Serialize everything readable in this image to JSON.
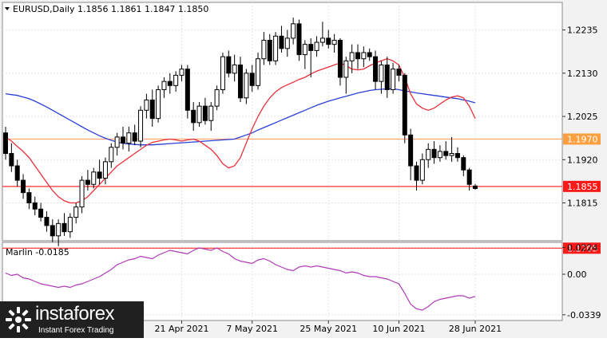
{
  "header": {
    "symbol_line": "EURUSD,Daily  1.1856 1.1861 1.1847 1.1850"
  },
  "indicator": {
    "label": "Marlin -0.0185"
  },
  "watermark": {
    "brand": "instaforex",
    "tagline": "Instant Forex Trading"
  },
  "colors": {
    "ma_fast": "#e8303a",
    "ma_slow": "#2b3fd6",
    "osc": "#b03ab8",
    "level_line": "#ff3030",
    "resistance_line": "#ffa070",
    "price_tag_red": "#ff1a1a",
    "price_tag_orange": "#ffa040"
  },
  "chart_data": [
    {
      "type": "candlestick",
      "title": "EURUSD,Daily  1.1856 1.1861 1.1847 1.1850",
      "ylim": [
        1.1725,
        1.23
      ],
      "y_ticks": [
        "1.2235",
        "1.2130",
        "1.2025",
        "1.1920",
        "1.1815"
      ],
      "x_ticks": [
        "21 Apr 2021",
        "7 May 2021",
        "25 May 2021",
        "10 Jun 2021",
        "28 Jun 2021"
      ],
      "x_tick_positions": [
        30,
        42,
        55,
        67,
        80
      ],
      "candles": [
        [
          1.1985,
          1.2,
          1.192,
          1.1935
        ],
        [
          1.1935,
          1.196,
          1.189,
          1.1905
        ],
        [
          1.1905,
          1.192,
          1.1855,
          1.187
        ],
        [
          1.187,
          1.1885,
          1.1825,
          1.184
        ],
        [
          1.184,
          1.185,
          1.18,
          1.1815
        ],
        [
          1.1815,
          1.183,
          1.1785,
          1.18
        ],
        [
          1.18,
          1.1815,
          1.177,
          1.178
        ],
        [
          1.178,
          1.1795,
          1.1745,
          1.176
        ],
        [
          1.176,
          1.1775,
          1.172,
          1.1735
        ],
        [
          1.1735,
          1.1775,
          1.171,
          1.1765
        ],
        [
          1.1765,
          1.179,
          1.1735,
          1.1745
        ],
        [
          1.1745,
          1.179,
          1.173,
          1.178
        ],
        [
          1.178,
          1.1815,
          1.1765,
          1.1805
        ],
        [
          1.1805,
          1.188,
          1.179,
          1.187
        ],
        [
          1.187,
          1.1895,
          1.1845,
          1.186
        ],
        [
          1.186,
          1.19,
          1.185,
          1.189
        ],
        [
          1.189,
          1.192,
          1.186,
          1.1875
        ],
        [
          1.1875,
          1.1925,
          1.186,
          1.1915
        ],
        [
          1.1915,
          1.196,
          1.19,
          1.195
        ],
        [
          1.195,
          1.1985,
          1.193,
          1.1975
        ],
        [
          1.1975,
          1.2,
          1.1945,
          1.196
        ],
        [
          1.196,
          1.2,
          1.194,
          1.1985
        ],
        [
          1.1985,
          1.2005,
          1.1955,
          1.1965
        ],
        [
          1.1965,
          1.205,
          1.195,
          1.204
        ],
        [
          1.204,
          1.208,
          1.202,
          1.2065
        ],
        [
          1.2065,
          1.209,
          1.2,
          1.202
        ],
        [
          1.202,
          1.21,
          1.201,
          1.209
        ],
        [
          1.209,
          1.212,
          1.207,
          1.211
        ],
        [
          1.211,
          1.213,
          1.208,
          1.21
        ],
        [
          1.21,
          1.2135,
          1.2085,
          1.2125
        ],
        [
          1.2125,
          1.215,
          1.211,
          1.214
        ],
        [
          1.214,
          1.215,
          1.202,
          1.204
        ],
        [
          1.204,
          1.206,
          1.199,
          1.201
        ],
        [
          1.201,
          1.206,
          1.2,
          1.205
        ],
        [
          1.205,
          1.207,
          1.2005,
          1.2015
        ],
        [
          1.2015,
          1.206,
          1.199,
          1.205
        ],
        [
          1.205,
          1.21,
          1.204,
          1.209
        ],
        [
          1.209,
          1.218,
          1.208,
          1.217
        ],
        [
          1.217,
          1.2185,
          1.212,
          1.213
        ],
        [
          1.213,
          1.2175,
          1.211,
          1.215
        ],
        [
          1.215,
          1.217,
          1.206,
          1.207
        ],
        [
          1.207,
          1.214,
          1.2055,
          1.213
        ],
        [
          1.213,
          1.215,
          1.2085,
          1.21
        ],
        [
          1.21,
          1.218,
          1.209,
          1.2165
        ],
        [
          1.2165,
          1.223,
          1.215,
          1.221
        ],
        [
          1.221,
          1.2225,
          1.215,
          1.216
        ],
        [
          1.216,
          1.223,
          1.215,
          1.222
        ],
        [
          1.222,
          1.2245,
          1.218,
          1.219
        ],
        [
          1.219,
          1.2235,
          1.217,
          1.2215
        ],
        [
          1.2215,
          1.2265,
          1.22,
          1.225
        ],
        [
          1.225,
          1.226,
          1.216,
          1.2175
        ],
        [
          1.2175,
          1.221,
          1.214,
          1.22
        ],
        [
          1.22,
          1.2215,
          1.212,
          1.2185
        ],
        [
          1.2185,
          1.222,
          1.217,
          1.2205
        ],
        [
          1.2205,
          1.2255,
          1.2195,
          1.2215
        ],
        [
          1.2215,
          1.2235,
          1.219,
          1.22
        ],
        [
          1.22,
          1.2225,
          1.218,
          1.221
        ],
        [
          1.221,
          1.2215,
          1.21,
          1.212
        ],
        [
          1.212,
          1.217,
          1.208,
          1.216
        ],
        [
          1.216,
          1.22,
          1.213,
          1.218
        ],
        [
          1.218,
          1.22,
          1.214,
          1.2165
        ],
        [
          1.2165,
          1.2195,
          1.2145,
          1.218
        ],
        [
          1.218,
          1.219,
          1.216,
          1.217
        ],
        [
          1.217,
          1.2185,
          1.209,
          1.211
        ],
        [
          1.211,
          1.216,
          1.208,
          1.215
        ],
        [
          1.215,
          1.217,
          1.207,
          1.209
        ],
        [
          1.209,
          1.2155,
          1.208,
          1.214
        ],
        [
          1.214,
          1.215,
          1.211,
          1.2125
        ],
        [
          1.2125,
          1.213,
          1.196,
          1.198
        ],
        [
          1.198,
          1.1995,
          1.187,
          1.1905
        ],
        [
          1.1905,
          1.1915,
          1.1845,
          1.187
        ],
        [
          1.187,
          1.1935,
          1.186,
          1.192
        ],
        [
          1.192,
          1.196,
          1.19,
          1.1945
        ],
        [
          1.1945,
          1.1965,
          1.191,
          1.1925
        ],
        [
          1.1925,
          1.1955,
          1.1915,
          1.194
        ],
        [
          1.194,
          1.1965,
          1.192,
          1.193
        ],
        [
          1.193,
          1.1975,
          1.1915,
          1.1935
        ],
        [
          1.1935,
          1.195,
          1.1915,
          1.1925
        ],
        [
          1.1925,
          1.193,
          1.188,
          1.1895
        ],
        [
          1.1895,
          1.19,
          1.1845,
          1.186
        ],
        [
          1.1856,
          1.1861,
          1.1847,
          1.185
        ]
      ],
      "ma_fast": [
        1.1975,
        1.1965,
        1.1952,
        1.194,
        1.1925,
        1.1905,
        1.1885,
        1.1865,
        1.1845,
        1.183,
        1.182,
        1.1815,
        1.1815,
        1.182,
        1.183,
        1.1845,
        1.186,
        1.1875,
        1.189,
        1.1905,
        1.1915,
        1.1925,
        1.1935,
        1.1945,
        1.1955,
        1.1962,
        1.1965,
        1.1968,
        1.197,
        1.1968,
        1.1965,
        1.1968,
        1.197,
        1.1965,
        1.1955,
        1.1945,
        1.193,
        1.191,
        1.19,
        1.1905,
        1.1925,
        1.196,
        1.1995,
        1.2025,
        1.205,
        1.207,
        1.2085,
        1.2095,
        1.2102,
        1.2108,
        1.2115,
        1.212,
        1.2128,
        1.2135,
        1.214,
        1.2145,
        1.215,
        1.2155,
        1.2148,
        1.214,
        1.2138,
        1.214,
        1.2148,
        1.2155,
        1.216,
        1.2165,
        1.216,
        1.215,
        1.212,
        1.208,
        1.2055,
        1.2045,
        1.204,
        1.2045,
        1.2055,
        1.2065,
        1.2072,
        1.2075,
        1.207,
        1.205,
        1.202
      ],
      "ma_slow": [
        1.208,
        1.2078,
        1.2076,
        1.2072,
        1.2068,
        1.2062,
        1.2055,
        1.2048,
        1.204,
        1.2032,
        1.2024,
        1.2016,
        1.2008,
        1.2,
        1.1992,
        1.1985,
        1.1978,
        1.1972,
        1.1967,
        1.1963,
        1.196,
        1.1958,
        1.1957,
        1.1956,
        1.1956,
        1.1956,
        1.1957,
        1.1958,
        1.1959,
        1.196,
        1.1961,
        1.1962,
        1.1963,
        1.1964,
        1.1965,
        1.1966,
        1.1967,
        1.1968,
        1.1969,
        1.197,
        1.1975,
        1.198,
        1.1985,
        1.1992,
        1.1998,
        1.2004,
        1.201,
        1.2016,
        1.2022,
        1.2028,
        1.2034,
        1.204,
        1.2046,
        1.2052,
        1.2057,
        1.2062,
        1.2066,
        1.207,
        1.2074,
        1.2078,
        1.2082,
        1.2085,
        1.2088,
        1.209,
        1.2091,
        1.2092,
        1.2092,
        1.209,
        1.2087,
        1.2085,
        1.2082,
        1.208,
        1.2078,
        1.2076,
        1.2074,
        1.2072,
        1.207,
        1.2068,
        1.2065,
        1.2062,
        1.2058
      ],
      "levels": [
        {
          "value": 1.197,
          "label": "1.1970",
          "style": "orange"
        },
        {
          "value": 1.1855,
          "label": "1.1855",
          "style": "red"
        },
        {
          "value": 1.1705,
          "label": "1.1705",
          "style": "red"
        }
      ]
    },
    {
      "type": "line",
      "title": "Marlin -0.0185",
      "ylim": [
        -0.038,
        0.026
      ],
      "y_ticks": [
        "0.0224",
        "0.00",
        "-0.0339"
      ],
      "series": [
        {
          "values": [
            0.001,
            -0.001,
            0.0,
            -0.003,
            -0.004,
            -0.006,
            -0.008,
            -0.009,
            -0.01,
            -0.011,
            -0.01,
            -0.011,
            -0.009,
            -0.008,
            -0.006,
            -0.004,
            -0.002,
            0.001,
            0.004,
            0.008,
            0.01,
            0.012,
            0.013,
            0.015,
            0.014,
            0.013,
            0.016,
            0.018,
            0.02,
            0.019,
            0.018,
            0.017,
            0.02,
            0.022,
            0.021,
            0.02,
            0.022,
            0.019,
            0.017,
            0.013,
            0.011,
            0.01,
            0.009,
            0.012,
            0.013,
            0.011,
            0.008,
            0.006,
            0.004,
            0.003,
            0.006,
            0.007,
            0.006,
            0.007,
            0.006,
            0.005,
            0.004,
            0.003,
            0.001,
            0.002,
            0.001,
            -0.001,
            -0.002,
            -0.002,
            -0.003,
            -0.004,
            -0.006,
            -0.008,
            -0.016,
            -0.025,
            -0.029,
            -0.03,
            -0.027,
            -0.023,
            -0.021,
            -0.02,
            -0.019,
            -0.018,
            -0.018,
            -0.02,
            -0.0185
          ]
        }
      ]
    }
  ]
}
